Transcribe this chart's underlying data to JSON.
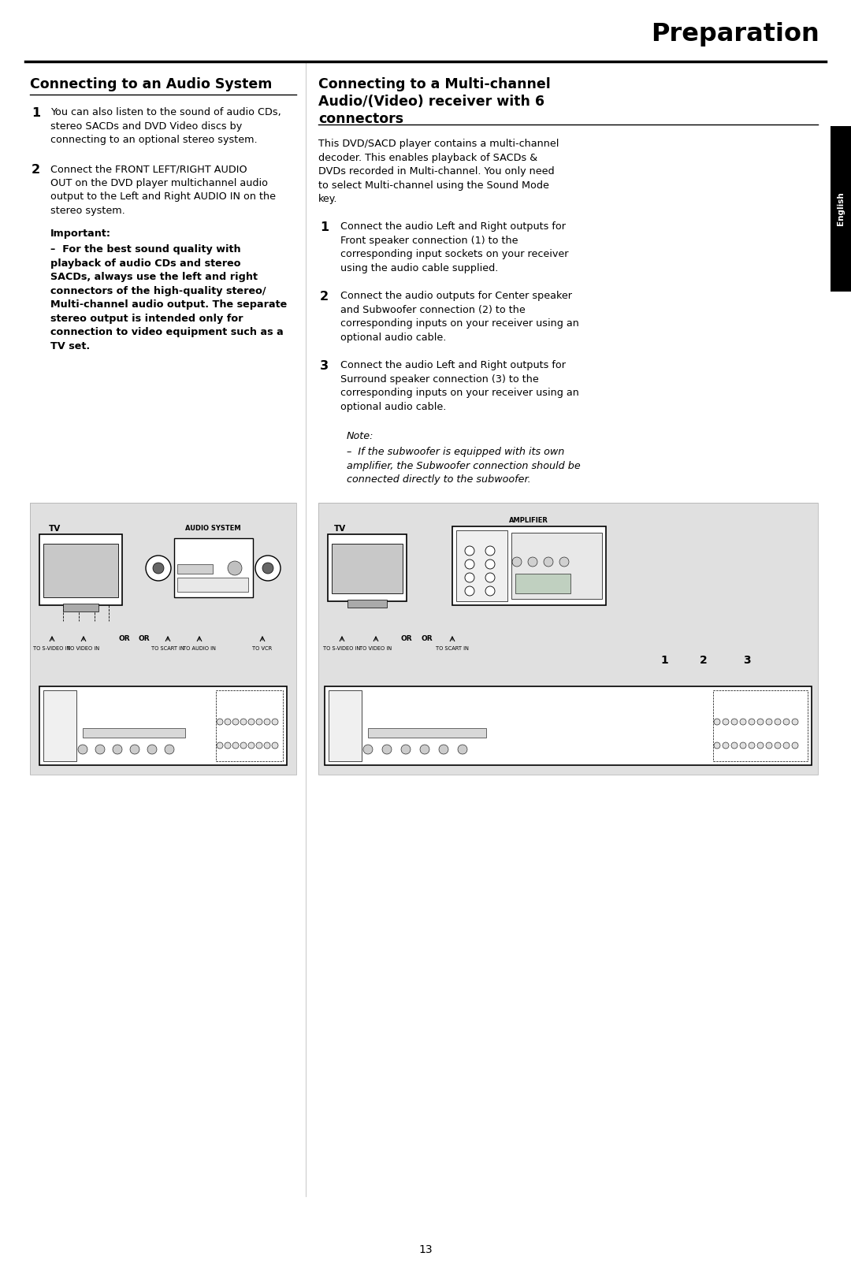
{
  "page_title": "Preparation",
  "left_heading": "Connecting to an Audio System",
  "left_item1": "You can also listen to the sound of audio CDs,\nstereo SACDs and DVD Video discs by\nconnecting to an optional stereo system.",
  "left_item2": "Connect the FRONT LEFT/RIGHT AUDIO\nOUT on the DVD player multichannel audio\noutput to the Left and Right AUDIO IN on the\nstereo system.",
  "left_important_label": "Important:",
  "left_important_body": "–  For the best sound quality with\nplayback of audio CDs and stereo\nSACDs, always use the left and right\nconnectors of the high-quality stereo/\nMulti-channel audio output. The separate\nstereo output is intended only for\nconnection to video equipment such as a\nTV set.",
  "right_heading_line1": "Connecting to a Multi-channel",
  "right_heading_line2": "Audio/(Video) receiver with 6",
  "right_heading_line3": "connectors",
  "right_intro": "This DVD/SACD player contains a multi-channel\ndecoder. This enables playback of SACDs &\nDVDs recorded in Multi-channel. You only need\nto select Multi-channel using the Sound Mode\nkey.",
  "right_item1": "Connect the audio Left and Right outputs for\nFront speaker connection (1) to the\ncorresponding input sockets on your receiver\nusing the audio cable supplied.",
  "right_item2": "Connect the audio outputs for Center speaker\nand Subwoofer connection (2) to the\ncorresponding inputs on your receiver using an\noptional audio cable.",
  "right_item3": "Connect the audio Left and Right outputs for\nSurround speaker connection (3) to the\ncorresponding inputs on your receiver using an\noptional audio cable.",
  "right_note_label": "Note:",
  "right_note_text": "–  If the subwoofer is equipped with its own\namplifier, the Subwoofer connection should be\nconnected directly to the subwoofer.",
  "page_number": "13",
  "sidebar_text": "English",
  "bg_color": "#ffffff",
  "sidebar_bg": "#000000",
  "sidebar_fg": "#ffffff",
  "text_color": "#000000",
  "diagram_bg": "#e0e0e0",
  "divider_color": "#000000",
  "col_divider": "#cccccc"
}
